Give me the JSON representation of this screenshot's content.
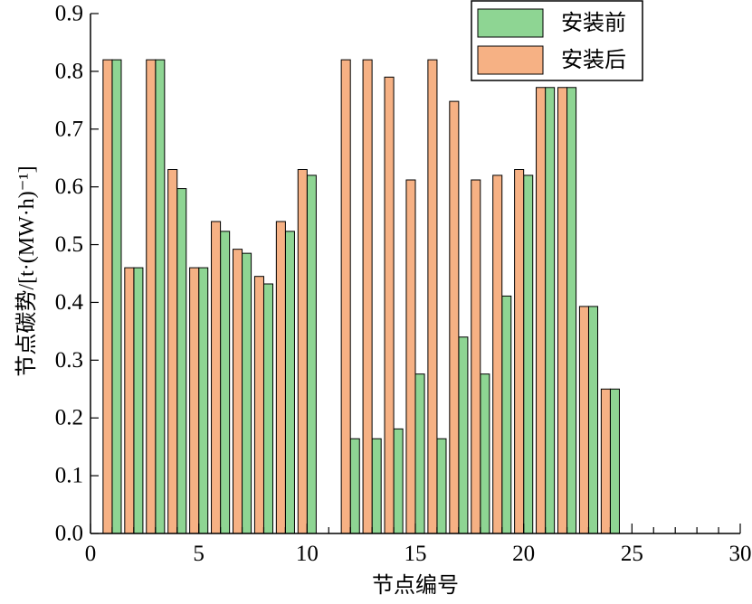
{
  "chart_data": {
    "type": "bar",
    "x": [
      1,
      2,
      3,
      4,
      5,
      6,
      7,
      8,
      9,
      10,
      11,
      12,
      13,
      14,
      15,
      16,
      17,
      18,
      19,
      20,
      21,
      22,
      23,
      24
    ],
    "series": [
      {
        "name": "安装前",
        "color": "#8ed593",
        "values": [
          0.82,
          0.46,
          0.82,
          0.597,
          0.46,
          0.523,
          0.485,
          0.432,
          0.523,
          0.62,
          0,
          0.164,
          0.164,
          0.181,
          0.276,
          0.164,
          0.34,
          0.276,
          0.411,
          0.62,
          0.772,
          0.772,
          0.393,
          0.25
        ]
      },
      {
        "name": "安装后",
        "color": "#f6b184",
        "values": [
          0.82,
          0.46,
          0.82,
          0.63,
          0.46,
          0.54,
          0.492,
          0.445,
          0.54,
          0.63,
          0,
          0.82,
          0.82,
          0.79,
          0.612,
          0.82,
          0.748,
          0.612,
          0.62,
          0.63,
          0.772,
          0.772,
          0.393,
          0.25
        ]
      }
    ],
    "xlabel": "节点编号",
    "ylabel": "节点碳势/[t·(MW·h)⁻¹]",
    "xlim": [
      0,
      30
    ],
    "ylim": [
      0,
      0.9
    ],
    "xtick_labels": [
      "0",
      "5",
      "10",
      "15",
      "20",
      "25",
      "30"
    ],
    "ytick_labels": [
      "0.0",
      "0.1",
      "0.2",
      "0.3",
      "0.4",
      "0.5",
      "0.6",
      "0.7",
      "0.8",
      "0.9"
    ],
    "grid": false,
    "legend": "top-right"
  }
}
